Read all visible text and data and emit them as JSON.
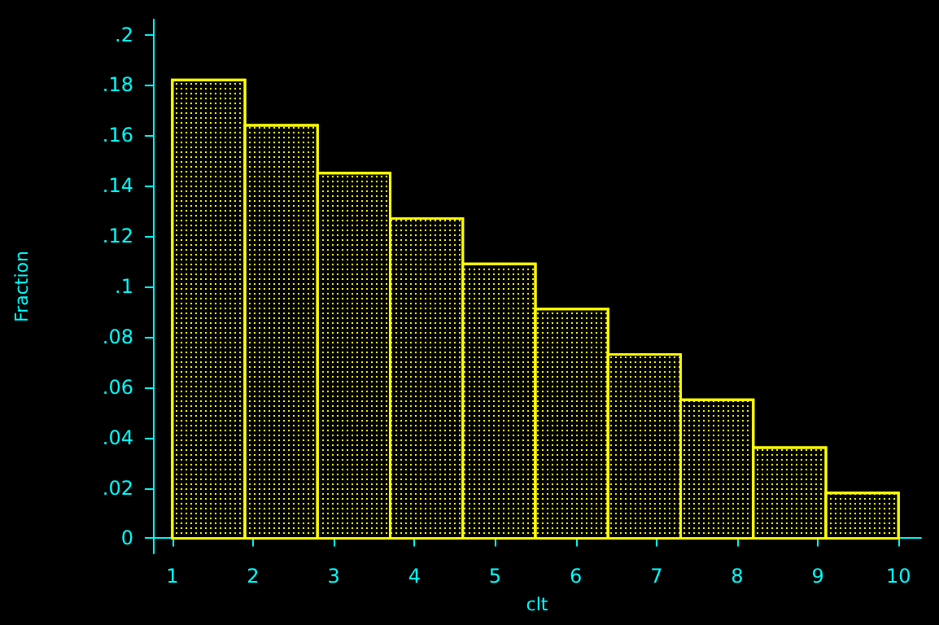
{
  "chart_data": {
    "type": "histogram",
    "xlabel": "clt",
    "ylabel": "Fraction",
    "bins": [
      1,
      1.9,
      2.8,
      3.7,
      4.6,
      5.5,
      6.4,
      7.3,
      8.2,
      9.1,
      10
    ],
    "values": [
      0.182,
      0.164,
      0.145,
      0.127,
      0.109,
      0.091,
      0.073,
      0.055,
      0.036,
      0.018
    ],
    "color": "#ffff00",
    "xlim": [
      0.76,
      10.28
    ],
    "xticks": [
      1,
      2,
      3,
      4,
      5,
      6,
      7,
      8,
      9,
      10
    ],
    "ylim": [
      -0.006,
      0.206
    ],
    "yticks": [
      {
        "value": 0,
        "label": "0"
      },
      {
        "value": 0.02,
        "label": ".02"
      },
      {
        "value": 0.04,
        "label": ".04"
      },
      {
        "value": 0.06,
        "label": ".06"
      },
      {
        "value": 0.08,
        "label": ".08"
      },
      {
        "value": 0.1,
        "label": ".1"
      },
      {
        "value": 0.12,
        "label": ".12"
      },
      {
        "value": 0.14,
        "label": ".14"
      },
      {
        "value": 0.16,
        "label": ".16"
      },
      {
        "value": 0.18,
        "label": ".18"
      },
      {
        "value": 0.2,
        "label": ".2"
      }
    ],
    "grid": false
  }
}
